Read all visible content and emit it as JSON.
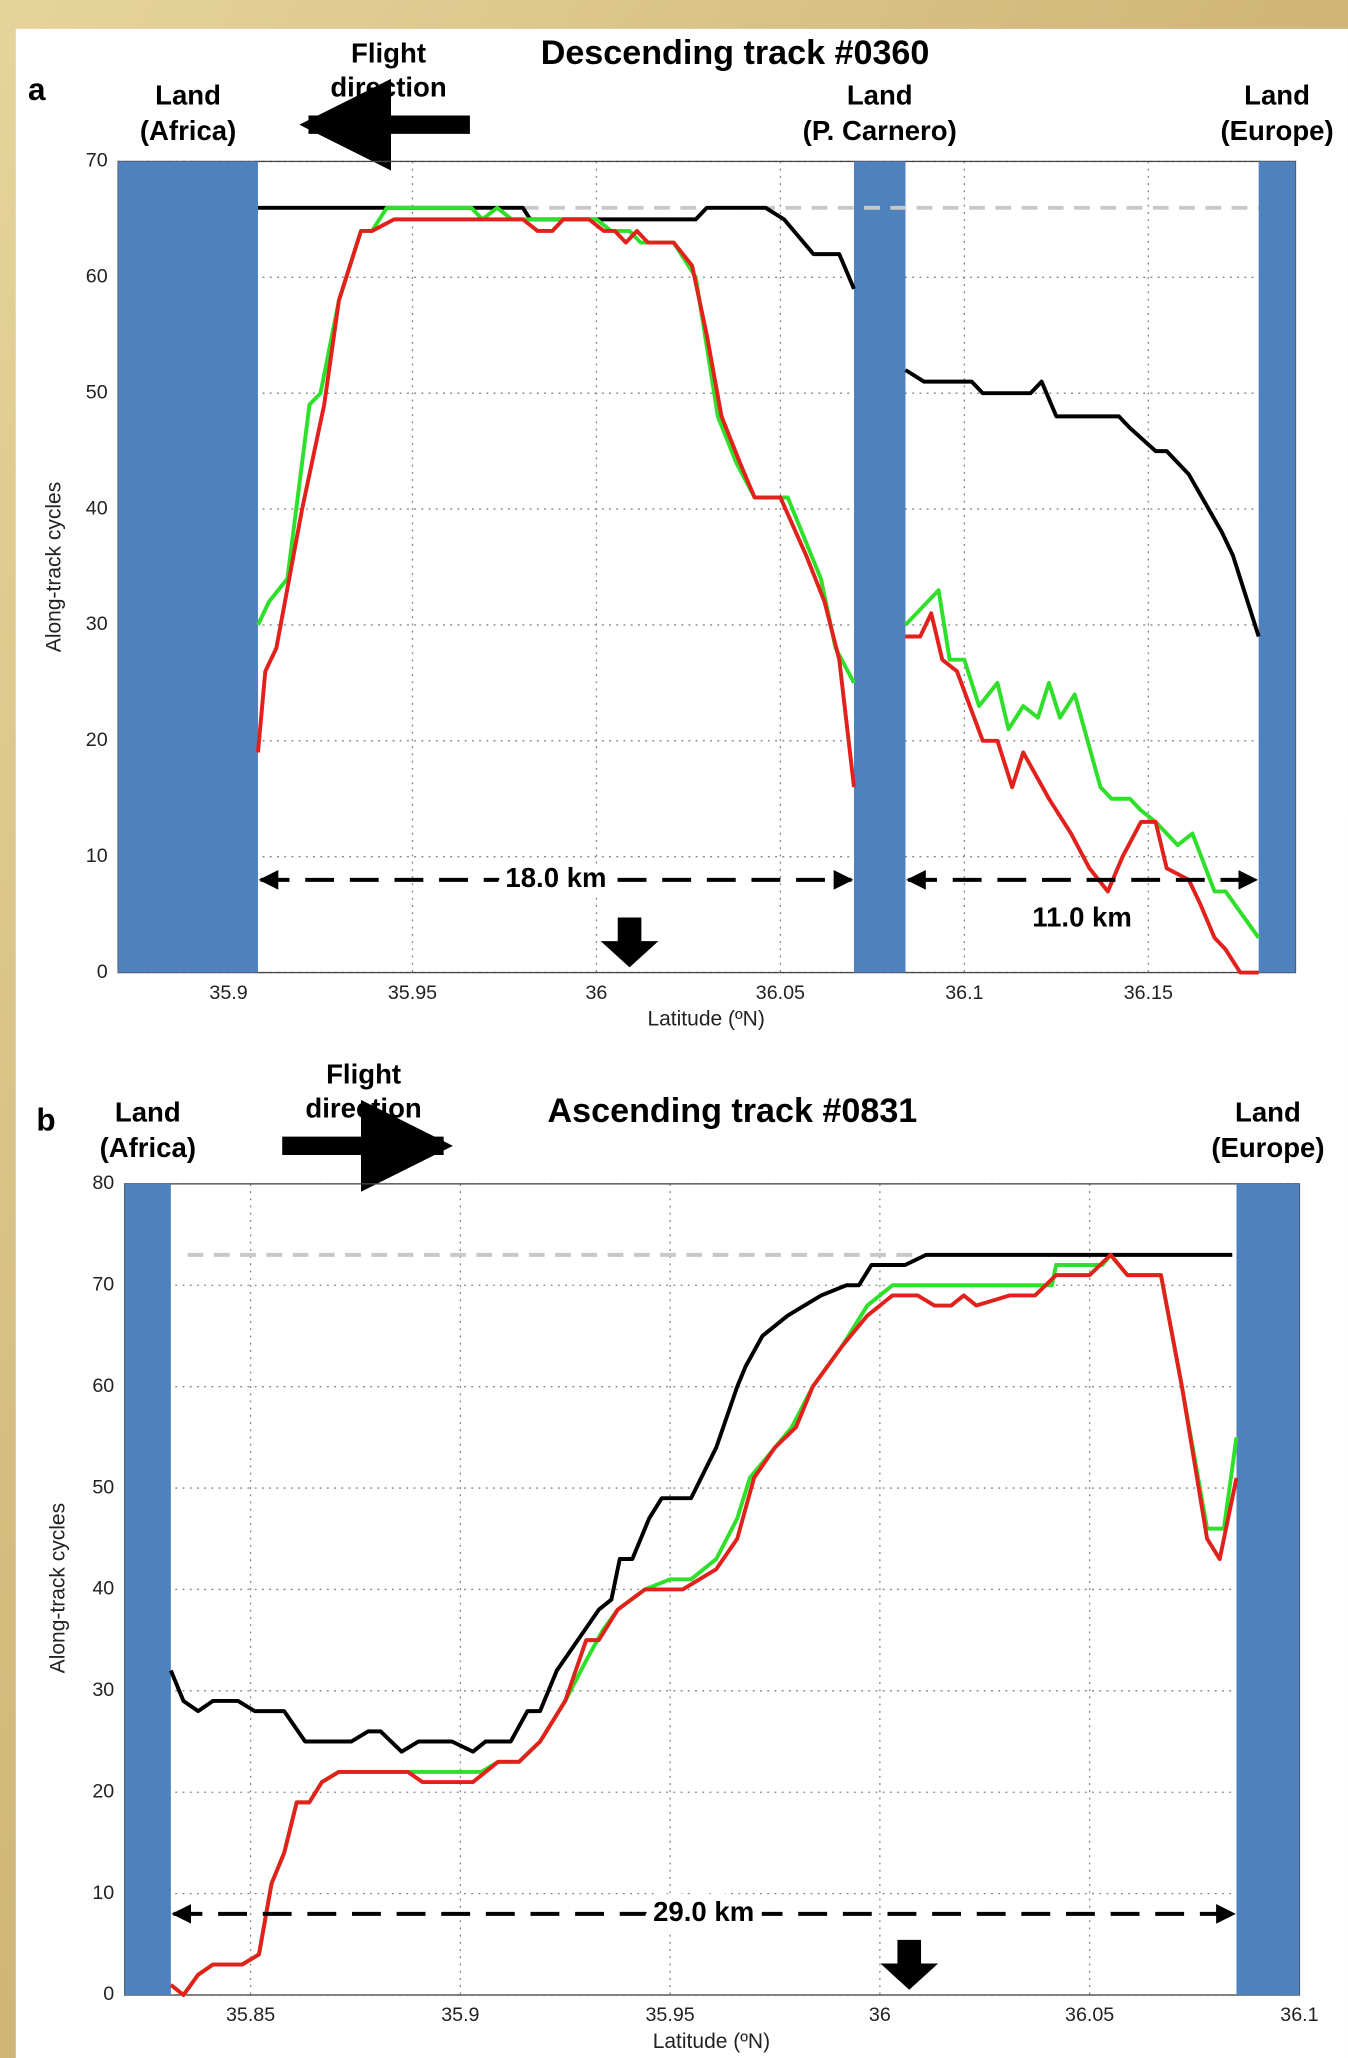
{
  "chart_data": [
    {
      "type": "line",
      "panel_label": "a",
      "title": "Descending track #0360",
      "flight_label": [
        "Flight",
        "direction"
      ],
      "xlabel": "Latitude (ºN)",
      "ylabel": "Along-track cycles",
      "xlim": [
        35.87,
        36.19
      ],
      "ylim": [
        0,
        70
      ],
      "xticks": [
        35.9,
        35.95,
        36,
        36.05,
        36.1,
        36.15
      ],
      "yticks": [
        0,
        10,
        20,
        30,
        40,
        50,
        60,
        70
      ],
      "grid": true,
      "land": [
        {
          "label": [
            "Land",
            "(Africa)"
          ],
          "x": [
            35.87,
            35.908
          ],
          "color": "#4f81bd"
        },
        {
          "label": [
            "Land",
            "(P. Carnero)"
          ],
          "x": [
            36.07,
            36.084
          ],
          "color": "#4f81bd"
        },
        {
          "label": [
            "Land",
            "(Europe)"
          ],
          "x": [
            36.18,
            36.19
          ],
          "color": "#4f81bd"
        }
      ],
      "reference_line": {
        "y": 66,
        "x": [
          35.98,
          36.18
        ],
        "color": "#c8c8c8"
      },
      "spans": [
        {
          "label": "18.0 km",
          "x": [
            35.908,
            36.07
          ],
          "y": 8
        },
        {
          "label": "11.0 km",
          "x": [
            36.084,
            36.18
          ],
          "y": 8
        }
      ],
      "arrow_x": 36.009,
      "series": [
        {
          "color": "#000000",
          "x": [
            35.908,
            35.98,
            35.982,
            36.027,
            36.03,
            36.046,
            36.051,
            36.059,
            36.066,
            36.07,
            null,
            36.084,
            36.089,
            36.102,
            36.105,
            36.118,
            36.121,
            36.125,
            36.142,
            36.145,
            36.152,
            36.155,
            36.161,
            36.17,
            36.173,
            36.18
          ],
          "values": [
            66,
            66,
            65,
            65,
            66,
            66,
            65,
            62,
            62,
            59,
            null,
            52,
            51,
            51,
            50,
            50,
            51,
            48,
            48,
            47,
            45,
            45,
            43,
            38,
            36,
            29
          ]
        },
        {
          "color": "#2fe02a",
          "x": [
            35.908,
            35.911,
            35.916,
            35.922,
            35.925,
            35.93,
            35.936,
            35.939,
            35.943,
            35.966,
            35.969,
            35.973,
            35.977,
            36.0,
            36.004,
            36.009,
            36.012,
            36.021,
            36.027,
            36.033,
            36.038,
            36.043,
            36.052,
            36.061,
            36.065,
            36.07,
            null,
            36.084,
            36.093,
            36.096,
            36.1,
            36.104,
            36.109,
            36.112,
            36.116,
            36.12,
            36.123,
            36.126,
            36.13,
            36.137,
            36.14,
            36.145,
            36.148,
            36.152,
            36.158,
            36.162,
            36.168,
            36.171,
            36.18
          ],
          "values": [
            30,
            32,
            34,
            49,
            50,
            58,
            64,
            64,
            66,
            66,
            65,
            66,
            65,
            65,
            64,
            64,
            63,
            63,
            60,
            48,
            44,
            41,
            41,
            34,
            28,
            25,
            null,
            30,
            33,
            27,
            27,
            23,
            25,
            21,
            23,
            22,
            25,
            22,
            24,
            16,
            15,
            15,
            14,
            13,
            11,
            12,
            7,
            7,
            3
          ]
        },
        {
          "color": "#e3211c",
          "x": [
            35.908,
            35.91,
            35.913,
            35.92,
            35.926,
            35.93,
            35.936,
            35.939,
            35.945,
            35.98,
            35.984,
            35.988,
            35.991,
            35.998,
            36.002,
            36.005,
            36.008,
            36.011,
            36.014,
            36.021,
            36.026,
            36.03,
            36.034,
            36.039,
            36.043,
            36.05,
            36.057,
            36.062,
            36.066,
            36.07,
            null,
            36.084,
            36.088,
            36.091,
            36.094,
            36.098,
            36.105,
            36.109,
            36.113,
            36.116,
            36.123,
            36.129,
            36.134,
            36.139,
            36.143,
            36.148,
            36.152,
            36.155,
            36.161,
            36.164,
            36.168,
            36.171,
            36.175,
            36.18
          ],
          "values": [
            19,
            26,
            28,
            40,
            49,
            58,
            64,
            64,
            65,
            65,
            64,
            64,
            65,
            65,
            64,
            64,
            63,
            64,
            63,
            63,
            61,
            55,
            48,
            44,
            41,
            41,
            36,
            32,
            27,
            16,
            null,
            29,
            29,
            31,
            27,
            26,
            20,
            20,
            16,
            19,
            15,
            12,
            9,
            7,
            10,
            13,
            13,
            9,
            8,
            6,
            3,
            2,
            0,
            0
          ]
        }
      ]
    },
    {
      "type": "line",
      "panel_label": "b",
      "title": "Ascending track #0831",
      "flight_label": [
        "Flight",
        "direction"
      ],
      "xlabel": "Latitude (ºN)",
      "ylabel": "Along-track cycles",
      "xlim": [
        35.82,
        36.1
      ],
      "ylim": [
        0,
        80
      ],
      "xticks": [
        35.85,
        35.9,
        35.95,
        36,
        36.05,
        36.1
      ],
      "yticks": [
        0,
        10,
        20,
        30,
        40,
        50,
        60,
        70,
        80
      ],
      "grid": true,
      "land": [
        {
          "label": [
            "Land",
            "(Africa)"
          ],
          "x": [
            35.82,
            35.831
          ],
          "color": "#4f81bd"
        },
        {
          "label": [
            "Land",
            "(Europe)"
          ],
          "x": [
            36.085,
            36.1
          ],
          "color": "#4f81bd"
        }
      ],
      "reference_line": {
        "y": 73,
        "x": [
          35.835,
          36.009
        ],
        "color": "#c8c8c8"
      },
      "spans": [
        {
          "label": "29.0 km",
          "x": [
            35.831,
            36.085
          ],
          "y": 8
        }
      ],
      "arrow_x": 36.007,
      "series": [
        {
          "color": "#000000",
          "x": [
            35.831,
            35.834,
            35.8375,
            35.841,
            35.847,
            35.851,
            35.858,
            35.863,
            35.874,
            35.878,
            35.881,
            35.886,
            35.89,
            35.898,
            35.903,
            35.906,
            35.912,
            35.916,
            35.919,
            35.923,
            35.928,
            35.933,
            35.936,
            35.938,
            35.941,
            35.945,
            35.948,
            35.955,
            35.961,
            35.966,
            35.968,
            35.972,
            35.978,
            35.986,
            35.992,
            35.995,
            35.998,
            36.003,
            36.006,
            36.011,
            36.084
          ],
          "values": [
            32,
            29,
            28,
            29,
            29,
            28,
            28,
            25,
            25,
            26,
            26,
            24,
            25,
            25,
            24,
            25,
            25,
            28,
            28,
            32,
            35,
            38,
            39,
            43,
            43,
            47,
            49,
            49,
            54,
            60,
            62,
            65,
            67,
            69,
            70,
            70,
            72,
            72,
            72,
            73,
            73
          ]
        },
        {
          "color": "#2fe02a",
          "x": [
            35.831,
            35.834,
            35.8375,
            35.841,
            35.848,
            35.852,
            35.855,
            35.858,
            35.861,
            35.864,
            35.867,
            35.871,
            35.884,
            35.892,
            35.905,
            35.909,
            35.914,
            35.919,
            35.925,
            35.93,
            35.934,
            35.9375,
            35.944,
            35.95,
            35.955,
            35.961,
            35.966,
            35.969,
            35.975,
            35.979,
            35.984,
            35.991,
            35.997,
            36.003,
            36.041,
            36.042,
            36.053,
            36.055,
            36.059,
            36.067,
            36.072,
            36.078,
            36.082,
            36.085
          ],
          "values": [
            1,
            0,
            2,
            3,
            3,
            4,
            11,
            14,
            19,
            19,
            21,
            22,
            22,
            22,
            22,
            23,
            23,
            25,
            29,
            33,
            36,
            38,
            40,
            41,
            41,
            43,
            47,
            51,
            54,
            56,
            60,
            64,
            68,
            70,
            70,
            72,
            72,
            73,
            71,
            71,
            60,
            46,
            46,
            55
          ]
        },
        {
          "color": "#e3211c",
          "x": [
            35.831,
            35.834,
            35.8375,
            35.841,
            35.848,
            35.852,
            35.855,
            35.858,
            35.861,
            35.864,
            35.867,
            35.871,
            35.8875,
            35.891,
            35.903,
            35.909,
            35.914,
            35.919,
            35.925,
            35.93,
            35.933,
            35.9375,
            35.944,
            35.953,
            35.961,
            35.966,
            35.97,
            35.975,
            35.98,
            35.984,
            35.991,
            35.997,
            36.003,
            36.009,
            36.013,
            36.017,
            36.02,
            36.023,
            36.031,
            36.037,
            36.042,
            36.05,
            36.055,
            36.059,
            36.067,
            36.072,
            36.078,
            36.081,
            36.085
          ],
          "values": [
            1,
            0,
            2,
            3,
            3,
            4,
            11,
            14,
            19,
            19,
            21,
            22,
            22,
            21,
            21,
            23,
            23,
            25,
            29,
            35,
            35,
            38,
            40,
            40,
            42,
            45,
            51,
            54,
            56,
            60,
            64,
            67,
            69,
            69,
            68,
            68,
            69,
            68,
            69,
            69,
            71,
            71,
            73,
            71,
            71,
            60,
            45,
            43,
            51
          ]
        }
      ]
    }
  ]
}
